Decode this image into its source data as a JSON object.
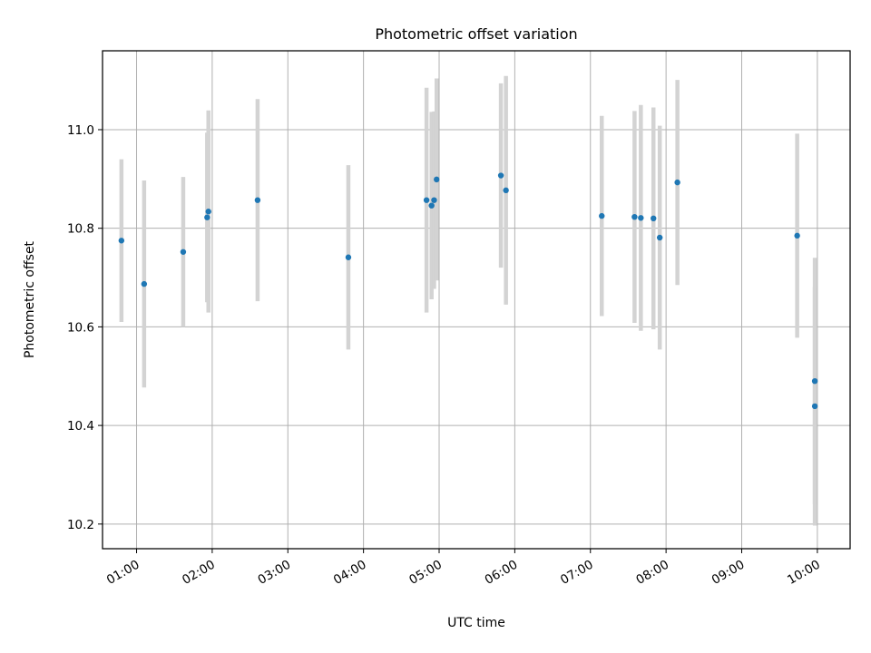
{
  "chart_data": {
    "type": "scatter",
    "title": "Photometric offset variation",
    "xlabel": "UTC time",
    "ylabel": "Photometric offset",
    "x_ticks": [
      "01:00",
      "02:00",
      "03:00",
      "04:00",
      "05:00",
      "06:00",
      "07:00",
      "08:00",
      "09:00",
      "10:00"
    ],
    "y_ticks": [
      "10.2",
      "10.4",
      "10.6",
      "10.8",
      "11.0"
    ],
    "xlim": [
      "00:33",
      "10:26"
    ],
    "ylim": [
      10.15,
      11.16
    ],
    "grid": true,
    "colors": {
      "marker": "#1f77b4",
      "errorbar": "#d3d3d3",
      "grid": "#b0b0b0"
    },
    "points": [
      {
        "x": "00:48",
        "y": 10.775,
        "yerr": 0.165
      },
      {
        "x": "01:06",
        "y": 10.687,
        "yerr": 0.21
      },
      {
        "x": "01:37",
        "y": 10.752,
        "yerr": 0.152
      },
      {
        "x": "01:56",
        "y": 10.822,
        "yerr": 0.172
      },
      {
        "x": "01:57",
        "y": 10.834,
        "yerr": 0.205
      },
      {
        "x": "02:36",
        "y": 10.857,
        "yerr": 0.205
      },
      {
        "x": "03:48",
        "y": 10.741,
        "yerr": 0.187
      },
      {
        "x": "04:50",
        "y": 10.857,
        "yerr": 0.228
      },
      {
        "x": "04:54",
        "y": 10.846,
        "yerr": 0.19
      },
      {
        "x": "04:56",
        "y": 10.857,
        "yerr": 0.18
      },
      {
        "x": "04:58",
        "y": 10.899,
        "yerr": 0.205
      },
      {
        "x": "05:49",
        "y": 10.907,
        "yerr": 0.187
      },
      {
        "x": "05:53",
        "y": 10.877,
        "yerr": 0.232
      },
      {
        "x": "07:09",
        "y": 10.825,
        "yerr": 0.203
      },
      {
        "x": "07:35",
        "y": 10.823,
        "yerr": 0.215
      },
      {
        "x": "07:40",
        "y": 10.821,
        "yerr": 0.229
      },
      {
        "x": "07:50",
        "y": 10.82,
        "yerr": 0.225
      },
      {
        "x": "07:55",
        "y": 10.781,
        "yerr": 0.227
      },
      {
        "x": "08:09",
        "y": 10.893,
        "yerr": 0.208
      },
      {
        "x": "09:44",
        "y": 10.785,
        "yerr": 0.207
      },
      {
        "x": "09:58",
        "y": 10.49,
        "yerr": 0.25
      },
      {
        "x": "09:58",
        "y": 10.439,
        "yerr": 0.242
      }
    ]
  }
}
